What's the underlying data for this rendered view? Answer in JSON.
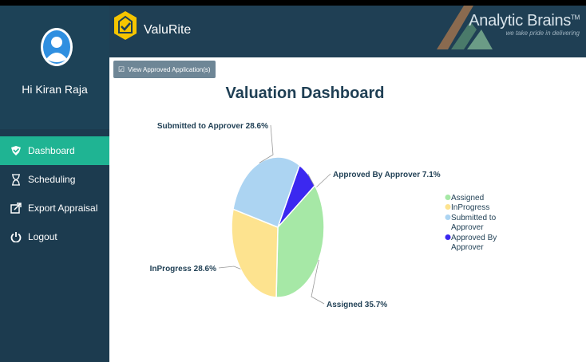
{
  "sidebar": {
    "greeting": "Hi Kiran Raja",
    "items": [
      {
        "label": "Dashboard",
        "icon": "flag-icon",
        "active": true
      },
      {
        "label": "Scheduling",
        "icon": "hourglass-icon",
        "active": false
      },
      {
        "label": "Export Appraisal",
        "icon": "export-icon",
        "active": false
      },
      {
        "label": "Logout",
        "icon": "power-icon",
        "active": false
      }
    ]
  },
  "header": {
    "app_name": "ValuRite",
    "brand_name": "Analytic Brains",
    "brand_tm": "TM",
    "brand_tagline": "we take pride in delivering"
  },
  "main": {
    "view_button_label": "View Approved Application(s)",
    "title": "Valuation Dashboard"
  },
  "chart_data": {
    "type": "pie",
    "title": "Valuation Dashboard",
    "slices": [
      {
        "name": "Assigned",
        "value": 35.7,
        "label": "Assigned 35.7%",
        "color": "#a6e8a6"
      },
      {
        "name": "InProgress",
        "value": 28.6,
        "label": "InProgress 28.6%",
        "color": "#fde38f"
      },
      {
        "name": "Submitted to Approver",
        "value": 28.6,
        "label": "Submitted to Approver 28.6%",
        "color": "#acd4f2"
      },
      {
        "name": "Approved By Approver",
        "value": 7.1,
        "label": "Approved By Approver 7.1%",
        "color": "#3b28f0"
      }
    ],
    "legend": {
      "placement": "right",
      "entries": [
        {
          "line1": "Assigned",
          "line2": ""
        },
        {
          "line1": "InProgress",
          "line2": ""
        },
        {
          "line1": "Submitted to",
          "line2": "Approver"
        },
        {
          "line1": "Approved By",
          "line2": "Approver"
        }
      ]
    }
  }
}
